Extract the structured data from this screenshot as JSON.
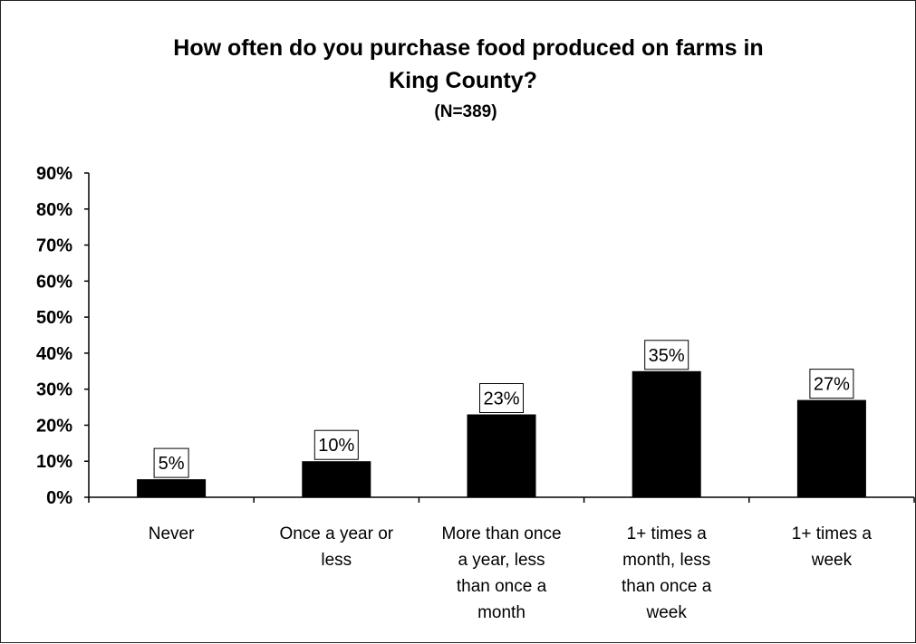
{
  "chart_data": {
    "type": "bar",
    "title_lines": [
      "How often do you purchase food produced on farms in",
      "King County?"
    ],
    "subtitle": "(N=389)",
    "categories": [
      [
        "Never"
      ],
      [
        "Once a year or",
        "less"
      ],
      [
        "More than once",
        "a year, less",
        "than once a",
        "month"
      ],
      [
        "1+ times a",
        "month, less",
        "than once a",
        "week"
      ],
      [
        "1+ times a",
        "week"
      ]
    ],
    "values": [
      5,
      10,
      23,
      35,
      27
    ],
    "data_labels": [
      "5%",
      "10%",
      "23%",
      "35%",
      "27%"
    ],
    "ylim": [
      0,
      90
    ],
    "yticks": [
      "0%",
      "10%",
      "20%",
      "30%",
      "40%",
      "50%",
      "60%",
      "70%",
      "80%",
      "90%"
    ],
    "bar_color": "#000000",
    "grid": false,
    "legend": "none"
  }
}
